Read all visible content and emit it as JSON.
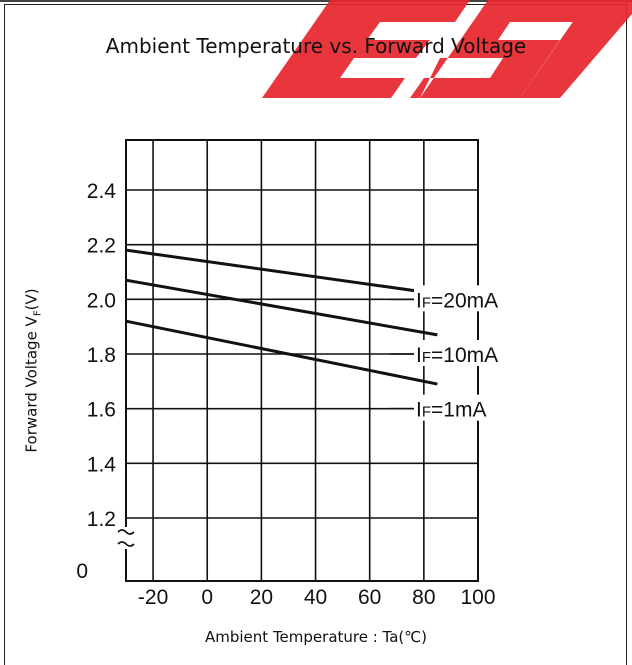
{
  "chart_data": {
    "type": "line",
    "title": "Ambient Temperature vs. Forward Voltage",
    "xlabel": "Ambient Temperature : Ta(℃)",
    "ylabel": "Forward Voltage V",
    "ylabel_sub": "F",
    "ylabel_suffix": "(V)",
    "xlim": [
      -30,
      100
    ],
    "ylim": [
      1.1,
      2.6
    ],
    "y_break": true,
    "x_ticks": [
      -20,
      0,
      20,
      40,
      60,
      80,
      100
    ],
    "y_ticks": [
      1.2,
      1.4,
      1.6,
      1.8,
      2.0,
      2.2,
      2.4
    ],
    "y_origin_label": "0",
    "grid": true,
    "series": [
      {
        "label_pre": "I",
        "label_sub": "F",
        "label_post": "=20mA",
        "x": [
          -30,
          85
        ],
        "y": [
          2.18,
          2.02
        ]
      },
      {
        "label_pre": "I",
        "label_sub": "F",
        "label_post": "=10mA",
        "x": [
          -30,
          85
        ],
        "y": [
          2.07,
          1.87
        ]
      },
      {
        "label_pre": "I",
        "label_sub": "F",
        "label_post": "=1mA",
        "x": [
          -30,
          85
        ],
        "y": [
          1.92,
          1.69
        ]
      }
    ]
  },
  "colors": {
    "line": "#111111",
    "grid": "#111111",
    "watermark": "#e8262c"
  }
}
